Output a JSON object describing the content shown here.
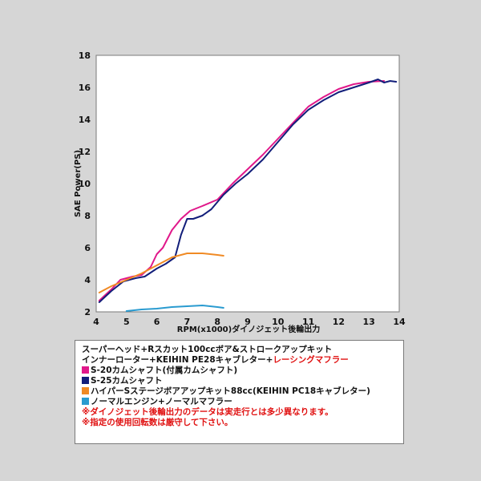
{
  "chart_data": {
    "type": "line",
    "xlabel": "RPM(x1000)ダイノジェット後輪出力",
    "ylabel": "SAE Power(PS)",
    "xlim": [
      4,
      14
    ],
    "ylim": [
      2,
      18
    ],
    "xticks": [
      4,
      5,
      6,
      7,
      8,
      9,
      10,
      11,
      12,
      13,
      14
    ],
    "yticks": [
      2,
      4,
      6,
      8,
      10,
      12,
      14,
      16,
      18
    ],
    "grid": false,
    "series": [
      {
        "name": "S-20カムシャフト(付属カムシャフト)",
        "color": "#e0188a",
        "x": [
          4.1,
          4.5,
          4.8,
          5.2,
          5.5,
          5.8,
          6.0,
          6.2,
          6.5,
          6.8,
          7.1,
          7.5,
          8.0,
          8.5,
          9.0,
          9.5,
          10.0,
          10.5,
          11.0,
          11.5,
          12.0,
          12.5,
          13.0,
          13.5
        ],
        "values": [
          2.7,
          3.4,
          4.0,
          4.2,
          4.3,
          4.8,
          5.6,
          6.0,
          7.1,
          7.8,
          8.3,
          8.6,
          9.0,
          10.0,
          10.9,
          11.8,
          12.8,
          13.8,
          14.8,
          15.4,
          15.9,
          16.2,
          16.35,
          16.4
        ]
      },
      {
        "name": "S-25カムシャフト",
        "color": "#121e7a",
        "x": [
          4.1,
          4.5,
          4.9,
          5.3,
          5.6,
          6.0,
          6.3,
          6.6,
          6.8,
          7.0,
          7.2,
          7.5,
          7.8,
          8.2,
          8.6,
          9.0,
          9.5,
          10.0,
          10.5,
          11.0,
          11.5,
          12.0,
          12.5,
          13.0,
          13.3,
          13.5,
          13.7,
          13.9
        ],
        "values": [
          2.6,
          3.3,
          3.9,
          4.1,
          4.2,
          4.7,
          5.0,
          5.4,
          6.8,
          7.8,
          7.8,
          8.0,
          8.4,
          9.3,
          10.0,
          10.6,
          11.5,
          12.6,
          13.7,
          14.6,
          15.2,
          15.7,
          16.0,
          16.3,
          16.5,
          16.3,
          16.4,
          16.35
        ]
      },
      {
        "name": "ハイパーSステージボアアップキット88cc(KEIHIN PC18キャブレター)",
        "color": "#f08a24",
        "x": [
          4.1,
          4.5,
          5.0,
          5.5,
          6.0,
          6.5,
          7.0,
          7.5,
          8.0,
          8.2
        ],
        "values": [
          3.2,
          3.6,
          4.0,
          4.4,
          4.9,
          5.4,
          5.65,
          5.65,
          5.55,
          5.5
        ]
      },
      {
        "name": "ノーマルエンジン+ノーマルマフラー",
        "color": "#2a9bd0",
        "x": [
          5.0,
          5.5,
          6.0,
          6.5,
          7.0,
          7.5,
          8.0,
          8.2
        ],
        "values": [
          2.05,
          2.15,
          2.2,
          2.3,
          2.35,
          2.4,
          2.3,
          2.25
        ]
      }
    ]
  },
  "legend": {
    "title_line1": "スーパーヘッド+Rスカット100ccボア&ストロークアップキット",
    "title_line2_part1": "インナーローター+KEIHIN PE28キャブレター+",
    "title_line2_part2": "レーシングマフラー",
    "note1": "※ダイノジェット後輪出力のデータは実走行とは多少異なります。",
    "note2": "※指定の使用回転数は厳守して下さい。"
  }
}
